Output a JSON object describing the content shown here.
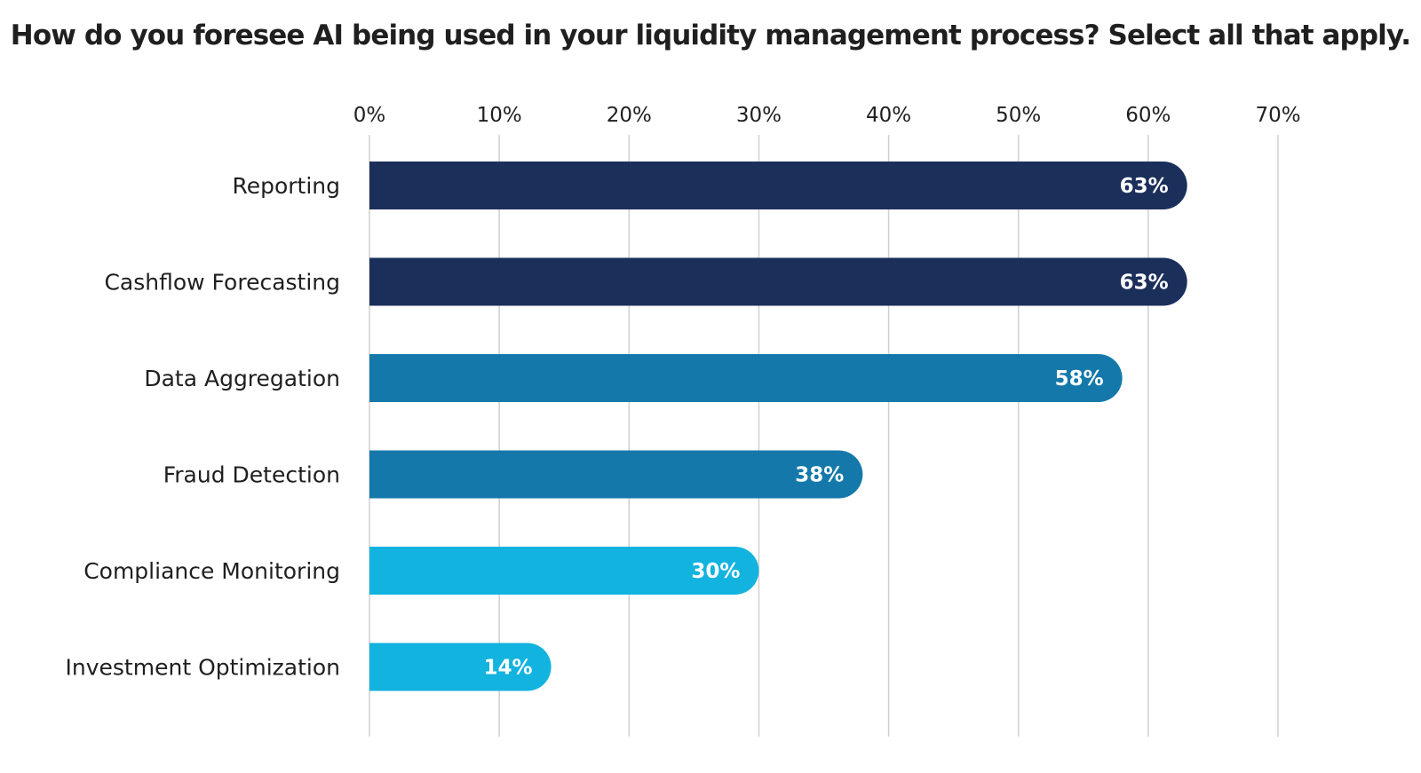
{
  "chart_data": {
    "type": "bar",
    "orientation": "horizontal",
    "title": "How do you foresee AI being used in your liquidity management process? Select all that apply.",
    "categories": [
      "Reporting",
      "Cashflow Forecasting",
      "Data Aggregation",
      "Fraud Detection",
      "Compliance Monitoring",
      "Investment Optimization"
    ],
    "values": [
      63,
      63,
      58,
      38,
      30,
      14
    ],
    "value_labels": [
      "63%",
      "63%",
      "58%",
      "38%",
      "30%",
      "14%"
    ],
    "bar_colors": [
      "#1b2f5b",
      "#1b2f5b",
      "#1479aa",
      "#1479aa",
      "#12b3df",
      "#12b3df"
    ],
    "xlim": [
      0,
      70
    ],
    "xticks": [
      0,
      10,
      20,
      30,
      40,
      50,
      60,
      70
    ],
    "xtick_labels": [
      "0%",
      "10%",
      "20%",
      "30%",
      "40%",
      "50%",
      "60%",
      "70%"
    ],
    "xaxis_position": "top",
    "grid": true,
    "grid_color": "#d0d0d0",
    "legend": "none",
    "xlabel": "",
    "ylabel": ""
  }
}
